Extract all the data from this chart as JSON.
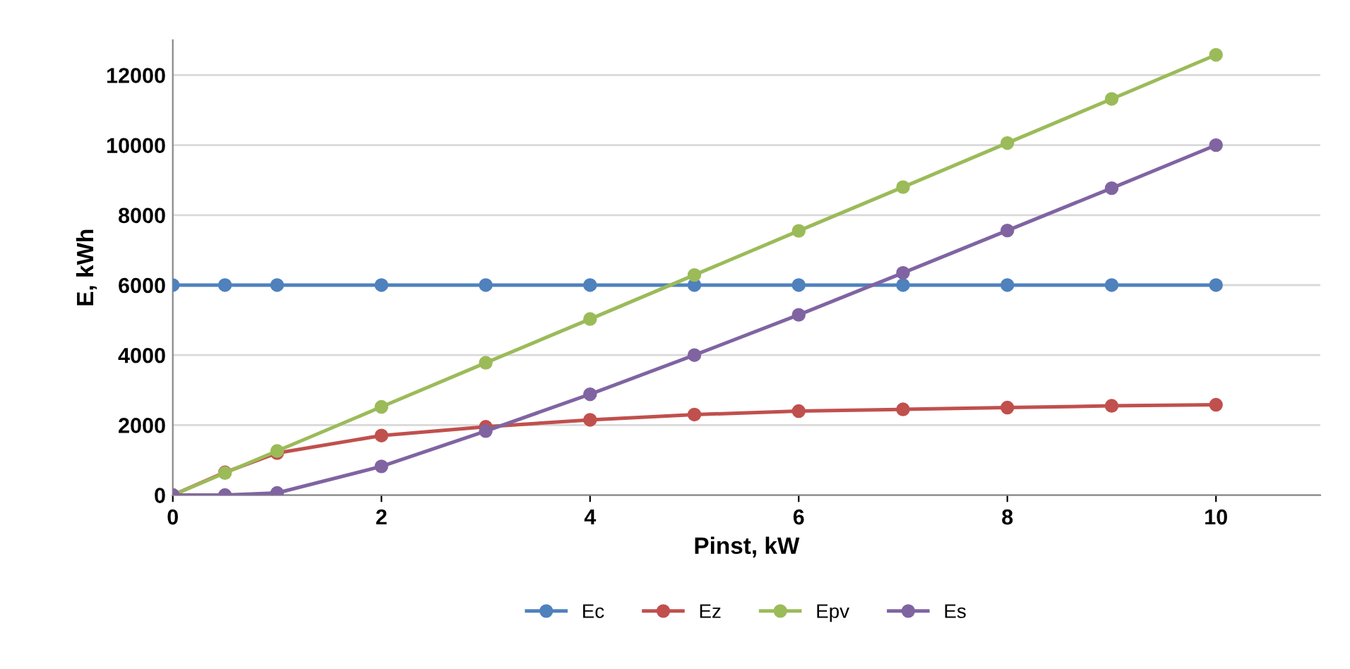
{
  "chart_data": {
    "type": "line",
    "xlabel": "Pinst, kW",
    "ylabel": "E, kWh",
    "x": [
      0,
      0.5,
      1,
      2,
      3,
      4,
      5,
      6,
      7,
      8,
      9,
      10
    ],
    "series": [
      {
        "name": "Ec",
        "color": "#4f81bd",
        "values": [
          6000,
          6000,
          6000,
          6000,
          6000,
          6000,
          6000,
          6000,
          6000,
          6000,
          6000,
          6000
        ]
      },
      {
        "name": "Ez",
        "color": "#c0504d",
        "values": [
          0,
          650,
          1200,
          1700,
          1950,
          2150,
          2300,
          2400,
          2450,
          2500,
          2550,
          2580
        ]
      },
      {
        "name": "Epv",
        "color": "#9bbb59",
        "values": [
          0,
          630,
          1260,
          2520,
          3780,
          5030,
          6290,
          7550,
          8800,
          10060,
          11320,
          12580
        ]
      },
      {
        "name": "Es",
        "color": "#8064a2",
        "values": [
          0,
          0,
          60,
          820,
          1830,
          2880,
          4000,
          5150,
          6350,
          7560,
          8770,
          10000
        ]
      }
    ],
    "xlim": [
      0,
      11
    ],
    "xticks": [
      0,
      2,
      4,
      6,
      8,
      10
    ],
    "ylim": [
      0,
      13000
    ],
    "yticks": [
      0,
      2000,
      4000,
      6000,
      8000,
      10000,
      12000
    ],
    "grid": "y",
    "legend": "bottom",
    "marker": "circle",
    "line_style": "solid"
  }
}
